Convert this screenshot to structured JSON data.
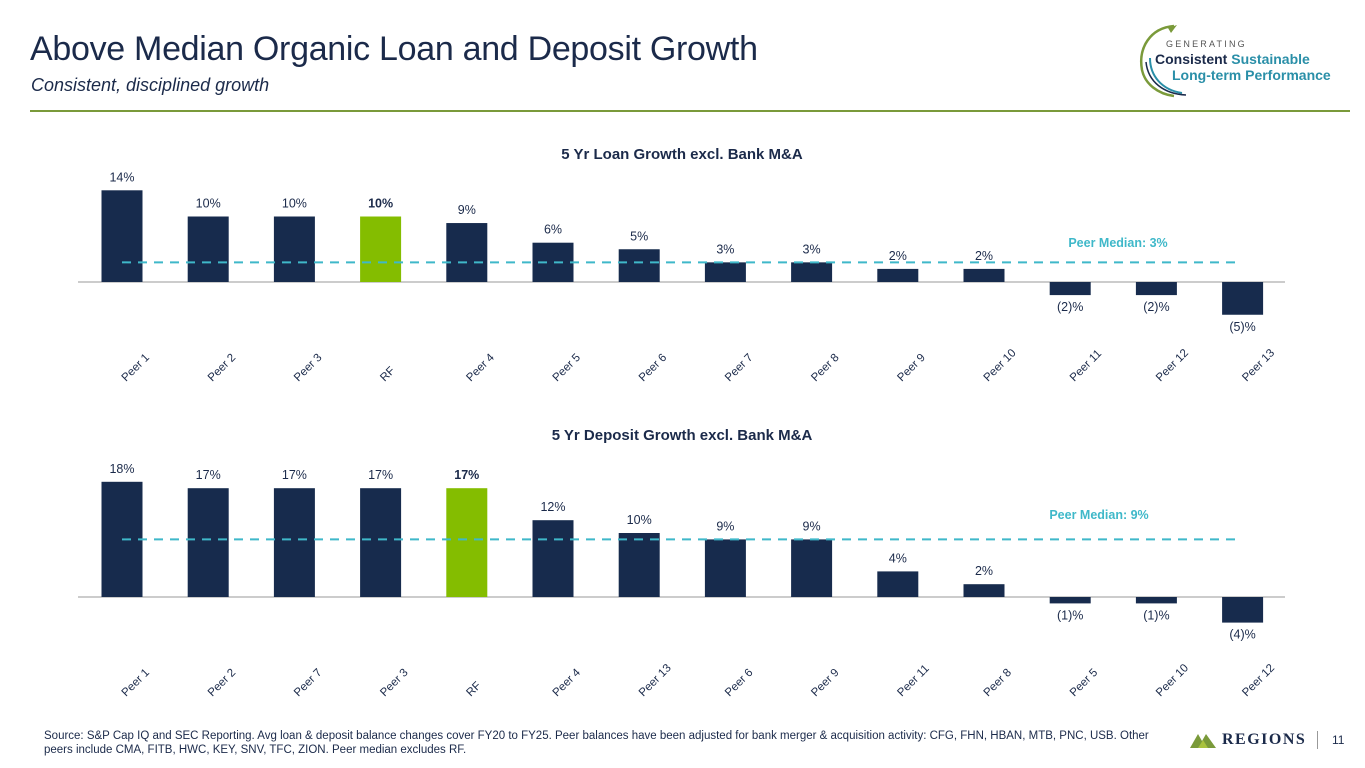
{
  "header": {
    "title": "Above Median Organic Loan and Deposit Growth",
    "subtitle": "Consistent, disciplined growth"
  },
  "logo": {
    "generating": "GENERATING",
    "line1a": "Consistent",
    "line1b": "Sustainable",
    "line2": "Long-term Performance"
  },
  "colors": {
    "bar": "#172b4d",
    "highlight": "#84bd00",
    "median": "#3fb8c9",
    "axis": "#999999"
  },
  "chart_data": [
    {
      "type": "bar",
      "title": "5 Yr Loan Growth excl. Bank M&A",
      "categories": [
        "Peer 1",
        "Peer 2",
        "Peer 3",
        "RF",
        "Peer 4",
        "Peer 5",
        "Peer 6",
        "Peer 7",
        "Peer 8",
        "Peer 9",
        "Peer 10",
        "Peer 11",
        "Peer 12",
        "Peer 13"
      ],
      "values": [
        14,
        10,
        10,
        10,
        9,
        6,
        5,
        3,
        3,
        2,
        2,
        -2,
        -2,
        -5
      ],
      "labels": [
        "14%",
        "10%",
        "10%",
        "10%",
        "9%",
        "6%",
        "5%",
        "3%",
        "3%",
        "2%",
        "2%",
        "(2)%",
        "(2)%",
        "(5)%"
      ],
      "highlight": "RF",
      "median_value": 3,
      "median_label": "Peer Median: 3%",
      "legend": "none"
    },
    {
      "type": "bar",
      "title": "5 Yr Deposit Growth excl. Bank M&A",
      "categories": [
        "Peer 1",
        "Peer 2",
        "Peer 7",
        "Peer 3",
        "RF",
        "Peer 4",
        "Peer 13",
        "Peer 6",
        "Peer 9",
        "Peer 11",
        "Peer 8",
        "Peer 5",
        "Peer 10",
        "Peer 12"
      ],
      "values": [
        18,
        17,
        17,
        17,
        17,
        12,
        10,
        9,
        9,
        4,
        2,
        -1,
        -1,
        -4
      ],
      "labels": [
        "18%",
        "17%",
        "17%",
        "17%",
        "17%",
        "12%",
        "10%",
        "9%",
        "9%",
        "4%",
        "2%",
        "(1)%",
        "(1)%",
        "(4)%"
      ],
      "highlight": "RF",
      "median_value": 9,
      "median_label": "Peer Median: 9%",
      "legend": "none"
    }
  ],
  "footer": {
    "source": "Source: S&P Cap IQ and SEC Reporting. Avg loan & deposit balance changes cover FY20 to FY25. Peer balances have been adjusted for bank merger & acquisition activity: CFG, FHN, HBAN, MTB, PNC, USB.  Other peers include CMA, FITB, HWC, KEY, SNV, TFC, ZION. Peer median excludes RF.",
    "brand": "REGIONS",
    "page": "11"
  }
}
